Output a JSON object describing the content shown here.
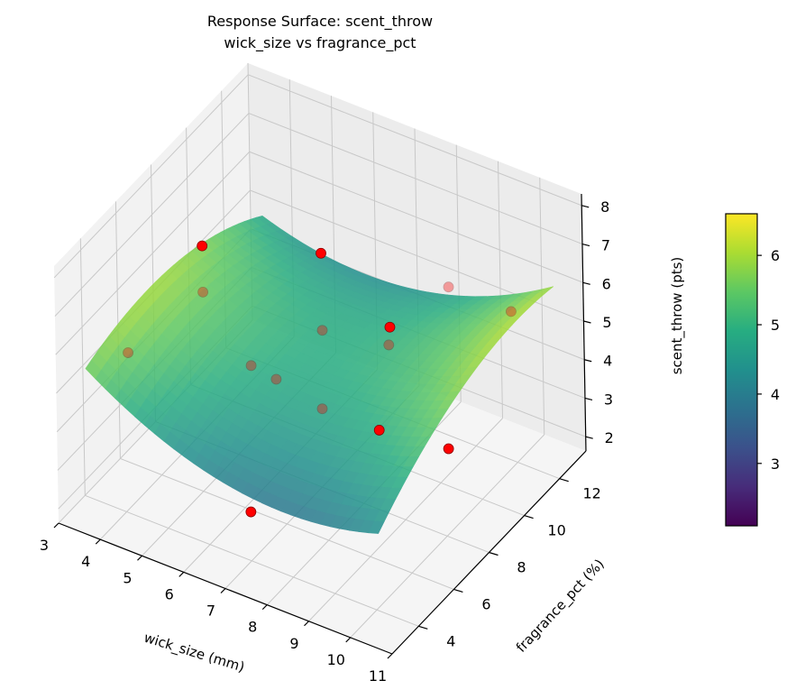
{
  "chart_data": {
    "type": "surface3d",
    "title": "Response Surface: scent_throw",
    "subtitle": "wick_size vs fragrance_pct",
    "xlabel": "wick_size (mm)",
    "ylabel": "fragrance_pct (%)",
    "zlabel": "scent_throw (pts)",
    "colorbar_label": "scent_throw (pts)",
    "colormap": "viridis",
    "xlim": [
      3,
      11
    ],
    "ylim": [
      2.5,
      13.5
    ],
    "zlim": [
      1.63,
      8.3
    ],
    "xticks": [
      3,
      4,
      5,
      6,
      7,
      8,
      9,
      10,
      11
    ],
    "yticks": [
      4,
      6,
      8,
      10,
      12
    ],
    "zticks": [
      2,
      3,
      4,
      5,
      6,
      7,
      8
    ],
    "colorbar_range": [
      2.1,
      6.6
    ],
    "colorbar_ticks": [
      3,
      4,
      5,
      6
    ],
    "surface": {
      "x_range": [
        3.5,
        10.5
      ],
      "y_range": [
        3,
        13
      ],
      "model": "z = 4.9 - 0.05u + 0.2v + 1.25u^2 - 0.7v^2 + 0.7uv, u=(x-7)/4, v=(y-8)/5",
      "coef": {
        "a": 4.9,
        "b": -0.05,
        "c": 0.2,
        "d": 1.25,
        "e": -0.7,
        "f": 0.7
      }
    },
    "points_color": "#ff0000",
    "points": [
      {
        "x": 4.2,
        "y": 8,
        "z": 6.7
      },
      {
        "x": 6.2,
        "y": 10,
        "z": 6.4
      },
      {
        "x": 8.4,
        "y": 12,
        "z": 5.5
      },
      {
        "x": 9.9,
        "y": 12,
        "z": 5.5
      },
      {
        "x": 8.7,
        "y": 8,
        "z": 6.5
      },
      {
        "x": 4.2,
        "y": 8,
        "z": 5.5
      },
      {
        "x": 4.1,
        "y": 4,
        "z": 5.8
      },
      {
        "x": 6.2,
        "y": 6,
        "z": 5.4
      },
      {
        "x": 6.8,
        "y": 6,
        "z": 5.3
      },
      {
        "x": 7.9,
        "y": 6,
        "z": 5.0
      },
      {
        "x": 6.2,
        "y": 10,
        "z": 4.4
      },
      {
        "x": 7.8,
        "y": 10,
        "z": 4.7
      },
      {
        "x": 8.4,
        "y": 8,
        "z": 3.7
      },
      {
        "x": 9.2,
        "y": 10,
        "z": 2.6
      },
      {
        "x": 7,
        "y": 4,
        "z": 2.9
      }
    ],
    "grid": true
  }
}
